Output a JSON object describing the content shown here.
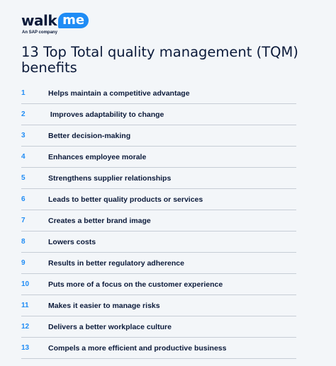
{
  "logo": {
    "walk": "walk",
    "me": "me",
    "tagline": "An SAP company"
  },
  "title": "13 Top Total quality management (TQM) benefits",
  "benefits": [
    {
      "num": "1",
      "text": "Helps maintain a competitive advantage"
    },
    {
      "num": "2",
      "text": " Improves adaptability to change"
    },
    {
      "num": "3",
      "text": "Better decision-making"
    },
    {
      "num": "4",
      "text": "Enhances employee morale"
    },
    {
      "num": "5",
      "text": "Strengthens supplier relationships"
    },
    {
      "num": "6",
      "text": "Leads to better quality products or services"
    },
    {
      "num": "7",
      "text": "Creates a better brand image"
    },
    {
      "num": "8",
      "text": "Lowers costs"
    },
    {
      "num": "9",
      "text": "Results in better regulatory adherence"
    },
    {
      "num": "10",
      "text": "Puts more of a focus on the customer experience"
    },
    {
      "num": "11",
      "text": "Makes it easier to manage risks"
    },
    {
      "num": "12",
      "text": "Delivers a better workplace culture"
    },
    {
      "num": "13",
      "text": "Compels a more efficient and productive business"
    }
  ]
}
